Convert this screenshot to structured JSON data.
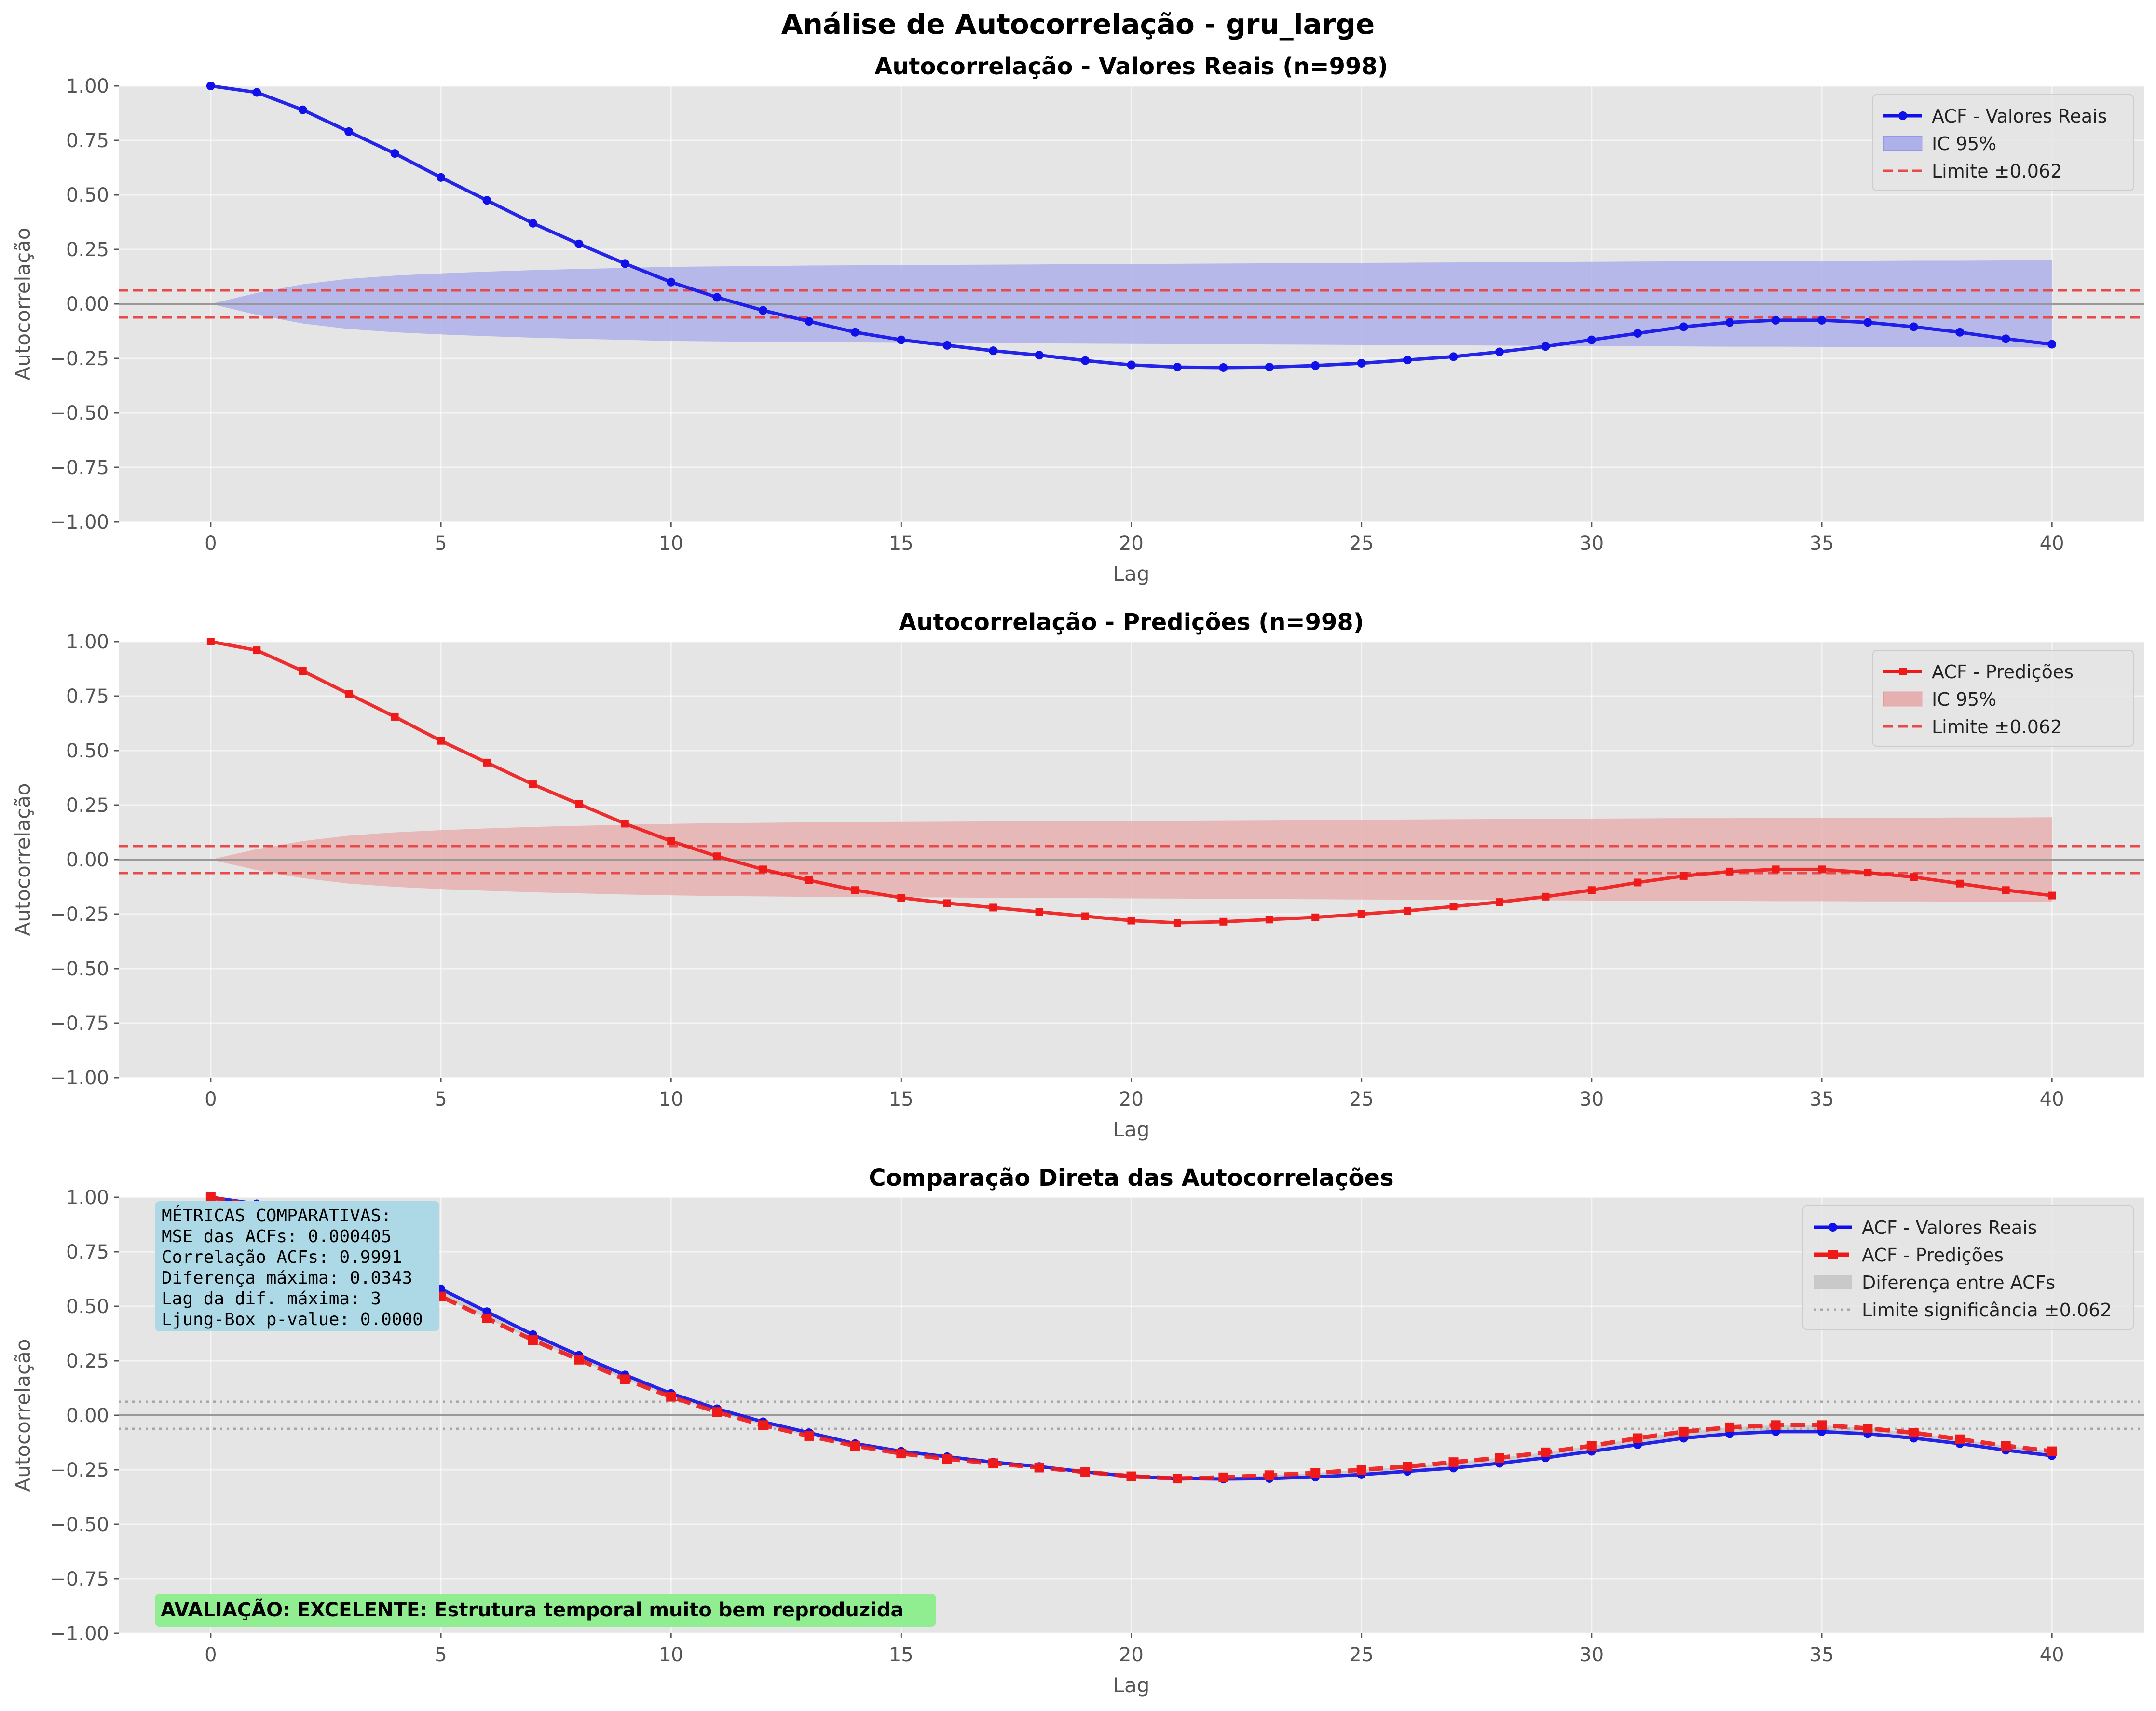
{
  "suptitle": "Análise de Autocorrelação - gru_large",
  "colors": {
    "real": "#1010e8",
    "pred": "#ee1a1a",
    "limit": "#e84a4a",
    "plot_bg": "#e5e5e5",
    "grid": "#ffffff",
    "ci_real": "#aeb0ea",
    "ci_pred": "#e7b0b0",
    "diff_fill": "#c9c9c9",
    "metrics_box": "#add8e6",
    "eval_box": "#90ee90"
  },
  "chart_data": [
    {
      "type": "line",
      "title": "Autocorrelação - Valores Reais (n=998)",
      "xlabel": "Lag",
      "ylabel": "Autocorrelação",
      "xlim": [
        -2,
        42
      ],
      "ylim": [
        -1.0,
        1.0
      ],
      "xticks": [
        "0",
        "5",
        "10",
        "15",
        "20",
        "25",
        "30",
        "35",
        "40"
      ],
      "yticks": [
        "1.00",
        "0.75",
        "0.50",
        "0.25",
        "0.00",
        "−0.25",
        "−0.50",
        "−0.75",
        "−1.00"
      ],
      "grid": true,
      "legend_position": "top-right",
      "legend": [
        "ACF - Valores Reais",
        "IC 95%",
        "Limite ±0.062"
      ],
      "significance_limit": 0.062,
      "x": [
        0,
        1,
        2,
        3,
        4,
        5,
        6,
        7,
        8,
        9,
        10,
        11,
        12,
        13,
        14,
        15,
        16,
        17,
        18,
        19,
        20,
        21,
        22,
        23,
        24,
        25,
        26,
        27,
        28,
        29,
        30,
        31,
        32,
        33,
        34,
        35,
        36,
        37,
        38,
        39,
        40
      ],
      "series": [
        {
          "name": "ACF - Valores Reais",
          "marker": "circle",
          "values": [
            1.0,
            0.97,
            0.89,
            0.79,
            0.69,
            0.58,
            0.475,
            0.37,
            0.275,
            0.185,
            0.1,
            0.03,
            -0.03,
            -0.08,
            -0.13,
            -0.165,
            -0.19,
            -0.215,
            -0.235,
            -0.26,
            -0.28,
            -0.29,
            -0.292,
            -0.29,
            -0.283,
            -0.272,
            -0.257,
            -0.242,
            -0.22,
            -0.195,
            -0.165,
            -0.135,
            -0.105,
            -0.085,
            -0.075,
            -0.075,
            -0.085,
            -0.105,
            -0.13,
            -0.16,
            -0.185
          ]
        }
      ],
      "confidence_band": [
        0.0,
        0.05,
        0.09,
        0.115,
        0.13,
        0.14,
        0.148,
        0.155,
        0.16,
        0.165,
        0.17,
        0.172,
        0.174,
        0.176,
        0.177,
        0.178,
        0.179,
        0.18,
        0.181,
        0.182,
        0.183,
        0.184,
        0.185,
        0.186,
        0.187,
        0.188,
        0.189,
        0.19,
        0.191,
        0.192,
        0.193,
        0.194,
        0.195,
        0.196,
        0.196,
        0.197,
        0.197,
        0.198,
        0.198,
        0.199,
        0.2
      ]
    },
    {
      "type": "line",
      "title": "Autocorrelação - Predições (n=998)",
      "xlabel": "Lag",
      "ylabel": "Autocorrelação",
      "xlim": [
        -2,
        42
      ],
      "ylim": [
        -1.0,
        1.0
      ],
      "xticks": [
        "0",
        "5",
        "10",
        "15",
        "20",
        "25",
        "30",
        "35",
        "40"
      ],
      "yticks": [
        "1.00",
        "0.75",
        "0.50",
        "0.25",
        "0.00",
        "−0.25",
        "−0.50",
        "−0.75",
        "−1.00"
      ],
      "grid": true,
      "legend_position": "top-right",
      "legend": [
        "ACF - Predições",
        "IC 95%",
        "Limite ±0.062"
      ],
      "significance_limit": 0.062,
      "x": [
        0,
        1,
        2,
        3,
        4,
        5,
        6,
        7,
        8,
        9,
        10,
        11,
        12,
        13,
        14,
        15,
        16,
        17,
        18,
        19,
        20,
        21,
        22,
        23,
        24,
        25,
        26,
        27,
        28,
        29,
        30,
        31,
        32,
        33,
        34,
        35,
        36,
        37,
        38,
        39,
        40
      ],
      "series": [
        {
          "name": "ACF - Predições",
          "marker": "square",
          "values": [
            1.0,
            0.96,
            0.865,
            0.76,
            0.655,
            0.545,
            0.445,
            0.345,
            0.255,
            0.165,
            0.085,
            0.015,
            -0.045,
            -0.095,
            -0.14,
            -0.175,
            -0.2,
            -0.22,
            -0.24,
            -0.26,
            -0.28,
            -0.29,
            -0.285,
            -0.275,
            -0.265,
            -0.25,
            -0.235,
            -0.215,
            -0.195,
            -0.17,
            -0.14,
            -0.105,
            -0.075,
            -0.055,
            -0.045,
            -0.045,
            -0.06,
            -0.08,
            -0.11,
            -0.14,
            -0.165
          ]
        }
      ],
      "confidence_band": [
        0.0,
        0.048,
        0.085,
        0.11,
        0.125,
        0.135,
        0.143,
        0.15,
        0.155,
        0.16,
        0.164,
        0.167,
        0.169,
        0.171,
        0.172,
        0.173,
        0.174,
        0.175,
        0.176,
        0.177,
        0.178,
        0.179,
        0.18,
        0.181,
        0.182,
        0.183,
        0.184,
        0.185,
        0.186,
        0.187,
        0.188,
        0.189,
        0.19,
        0.19,
        0.191,
        0.191,
        0.192,
        0.192,
        0.193,
        0.193,
        0.194
      ]
    },
    {
      "type": "line",
      "title": "Comparação Direta das Autocorrelações",
      "xlabel": "Lag",
      "ylabel": "Autocorrelação",
      "xlim": [
        -2,
        42
      ],
      "ylim": [
        -1.0,
        1.0
      ],
      "xticks": [
        "0",
        "5",
        "10",
        "15",
        "20",
        "25",
        "30",
        "35",
        "40"
      ],
      "yticks": [
        "1.00",
        "0.75",
        "0.50",
        "0.25",
        "0.00",
        "−0.25",
        "−0.50",
        "−0.75",
        "−1.00"
      ],
      "grid": true,
      "legend_position": "top-right",
      "legend": [
        "ACF - Valores Reais",
        "ACF - Predições",
        "Diferença entre ACFs",
        "Limite significância ±0.062"
      ],
      "significance_limit": 0.062,
      "metrics_text": [
        "MÉTRICAS COMPARATIVAS:",
        "MSE das ACFs: 0.000405",
        "Correlação ACFs: 0.9991",
        "Diferença máxima: 0.0343",
        "Lag da dif. máxima: 3",
        "Ljung-Box p-value: 0.0000"
      ],
      "evaluation_text": "AVALIAÇÃO: EXCELENTE: Estrutura temporal muito bem reproduzida",
      "x": [
        0,
        1,
        2,
        3,
        4,
        5,
        6,
        7,
        8,
        9,
        10,
        11,
        12,
        13,
        14,
        15,
        16,
        17,
        18,
        19,
        20,
        21,
        22,
        23,
        24,
        25,
        26,
        27,
        28,
        29,
        30,
        31,
        32,
        33,
        34,
        35,
        36,
        37,
        38,
        39,
        40
      ],
      "series": [
        {
          "name": "ACF - Valores Reais",
          "marker": "circle",
          "values": [
            1.0,
            0.97,
            0.89,
            0.79,
            0.69,
            0.58,
            0.475,
            0.37,
            0.275,
            0.185,
            0.1,
            0.03,
            -0.03,
            -0.08,
            -0.13,
            -0.165,
            -0.19,
            -0.215,
            -0.235,
            -0.26,
            -0.28,
            -0.29,
            -0.292,
            -0.29,
            -0.283,
            -0.272,
            -0.257,
            -0.242,
            -0.22,
            -0.195,
            -0.165,
            -0.135,
            -0.105,
            -0.085,
            -0.075,
            -0.075,
            -0.085,
            -0.105,
            -0.13,
            -0.16,
            -0.185
          ]
        },
        {
          "name": "ACF - Predições",
          "marker": "square",
          "values": [
            1.0,
            0.96,
            0.865,
            0.76,
            0.655,
            0.545,
            0.445,
            0.345,
            0.255,
            0.165,
            0.085,
            0.015,
            -0.045,
            -0.095,
            -0.14,
            -0.175,
            -0.2,
            -0.22,
            -0.24,
            -0.26,
            -0.28,
            -0.29,
            -0.285,
            -0.275,
            -0.265,
            -0.25,
            -0.235,
            -0.215,
            -0.195,
            -0.17,
            -0.14,
            -0.105,
            -0.075,
            -0.055,
            -0.045,
            -0.045,
            -0.06,
            -0.08,
            -0.11,
            -0.14,
            -0.165
          ]
        }
      ]
    }
  ]
}
